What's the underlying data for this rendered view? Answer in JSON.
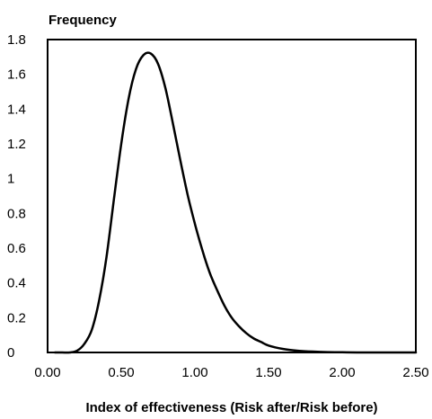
{
  "chart_data": {
    "type": "line",
    "ylabel": "Frequency",
    "xlabel": "Index of effectiveness (Risk after/Risk before)",
    "xlim": [
      0,
      2.5
    ],
    "ylim": [
      0,
      1.8
    ],
    "x_ticks": [
      "0.00",
      "0.50",
      "1.00",
      "1.50",
      "2.00",
      "2.50"
    ],
    "y_ticks": [
      "0",
      "0.2",
      "0.4",
      "0.6",
      "0.8",
      "1",
      "1.2",
      "1.4",
      "1.6",
      "1.8"
    ],
    "grid": false,
    "legend": "none",
    "line_color": "#000000",
    "series": [
      {
        "x": [
          0.05,
          0.1,
          0.15,
          0.2,
          0.25,
          0.3,
          0.35,
          0.4,
          0.45,
          0.5,
          0.55,
          0.6,
          0.65,
          0.7,
          0.75,
          0.8,
          0.85,
          0.9,
          0.95,
          1.0,
          1.05,
          1.1,
          1.15,
          1.2,
          1.25,
          1.3,
          1.35,
          1.4,
          1.45,
          1.5,
          1.6,
          1.7,
          1.8,
          1.9,
          2.0,
          2.1,
          2.2,
          2.3,
          2.4,
          2.5
        ],
        "values": [
          0.0,
          0.0,
          0.0,
          0.01,
          0.05,
          0.13,
          0.3,
          0.55,
          0.88,
          1.2,
          1.46,
          1.63,
          1.71,
          1.72,
          1.66,
          1.52,
          1.32,
          1.11,
          0.91,
          0.74,
          0.59,
          0.46,
          0.36,
          0.27,
          0.2,
          0.15,
          0.11,
          0.08,
          0.06,
          0.04,
          0.02,
          0.01,
          0.005,
          0.002,
          0.001,
          0.0,
          0.0,
          0.0,
          0.0,
          0.0
        ]
      }
    ]
  }
}
